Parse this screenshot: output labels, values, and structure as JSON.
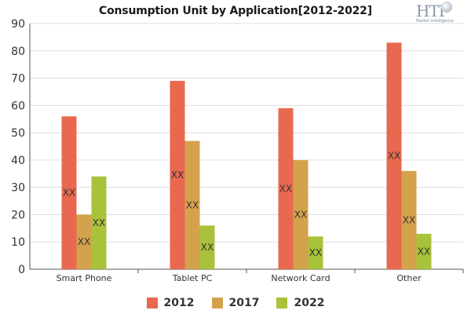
{
  "chart_data": {
    "type": "bar",
    "title": "Consumption Unit by  Application[2012-2022]",
    "categories": [
      "Smart Phone",
      "Tablet PC",
      "Network Card",
      "Other"
    ],
    "series": [
      {
        "name": "2012",
        "color": "#e8694f",
        "values": [
          56,
          69,
          59,
          83
        ],
        "labels": [
          "XX",
          "XX",
          "XX",
          "XX"
        ]
      },
      {
        "name": "2017",
        "color": "#d4a24c",
        "values": [
          20,
          47,
          40,
          36
        ],
        "labels": [
          "XX",
          "XX",
          "XX",
          "XX"
        ]
      },
      {
        "name": "2022",
        "color": "#a8c23a",
        "values": [
          34,
          16,
          12,
          13
        ],
        "labels": [
          "XX",
          "XX",
          "XX",
          "XX"
        ]
      }
    ],
    "ylim": [
      0,
      90
    ],
    "yticks": [
      0,
      10,
      20,
      30,
      40,
      50,
      60,
      70,
      80,
      90
    ],
    "grid": true,
    "legend_position": "bottom"
  },
  "logo": {
    "text": "HTF",
    "subtext": "Market Intelligence"
  }
}
